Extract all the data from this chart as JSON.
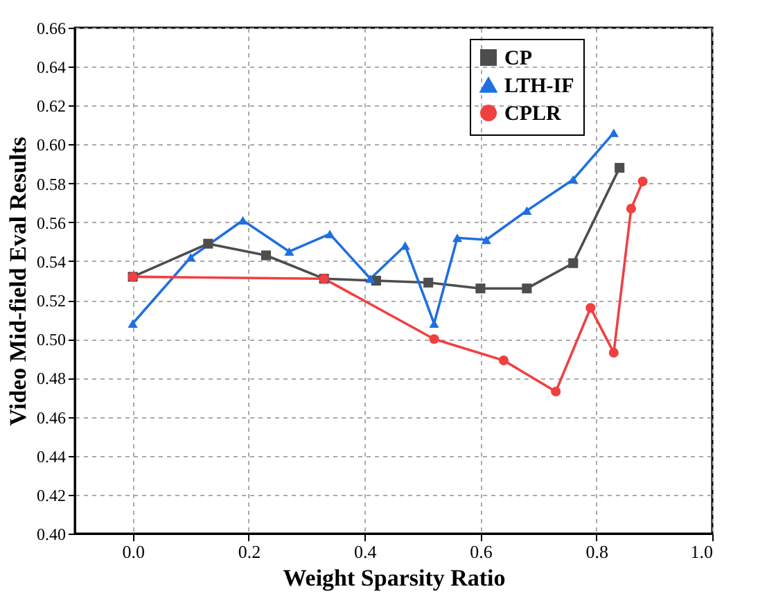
{
  "chart_data": {
    "type": "line",
    "xlabel": "Weight Sparsity Ratio",
    "ylabel": "Video Mid-field Eval Results",
    "xlim": [
      -0.1,
      1.0
    ],
    "xticks": [
      {
        "value": 0,
        "label": "0.0"
      },
      0.2,
      0.4,
      0.6,
      0.8,
      {
        "value": 1,
        "label": "1.0"
      }
    ],
    "ylim": [
      0.4,
      0.66
    ],
    "yticks": [
      {
        "value": 0.4,
        "label": "0.40"
      },
      0.42,
      0.44,
      0.46,
      0.48,
      {
        "value": 0.5,
        "label": "0.50"
      },
      0.52,
      0.54,
      0.56,
      0.58,
      {
        "value": 0.6,
        "label": "0.60"
      },
      0.62,
      0.64,
      0.66
    ],
    "grid": true,
    "legend": "top right",
    "line_style": "solid",
    "series": [
      {
        "name": "CP",
        "color": "#4d4d4d",
        "marker": "square",
        "x": [
          0,
          0.13,
          0.23,
          0.33,
          0.42,
          0.51,
          0.6,
          0.68,
          0.76,
          0.84
        ],
        "values": [
          0.532,
          0.549,
          0.543,
          0.531,
          0.53,
          0.529,
          0.526,
          0.526,
          0.539,
          0.588
        ]
      },
      {
        "name": "LTH-IF",
        "color": "#1f6fe0",
        "marker": "triangle",
        "x": [
          0,
          0.1,
          0.19,
          0.27,
          0.34,
          0.41,
          0.47,
          0.52,
          0.56,
          0.61,
          0.68,
          0.76,
          0.83
        ],
        "values": [
          0.508,
          0.542,
          0.561,
          0.545,
          0.554,
          0.531,
          0.548,
          0.508,
          0.552,
          0.551,
          0.566,
          0.582,
          0.606
        ]
      },
      {
        "name": "CPLR",
        "color": "#f04040",
        "marker": "circle",
        "x": [
          0,
          0.33,
          0.52,
          0.64,
          0.73,
          0.79,
          0.83,
          0.86,
          0.88
        ],
        "values": [
          0.532,
          0.531,
          0.5,
          0.489,
          0.473,
          0.516,
          0.493,
          0.567,
          0.581
        ]
      }
    ]
  }
}
